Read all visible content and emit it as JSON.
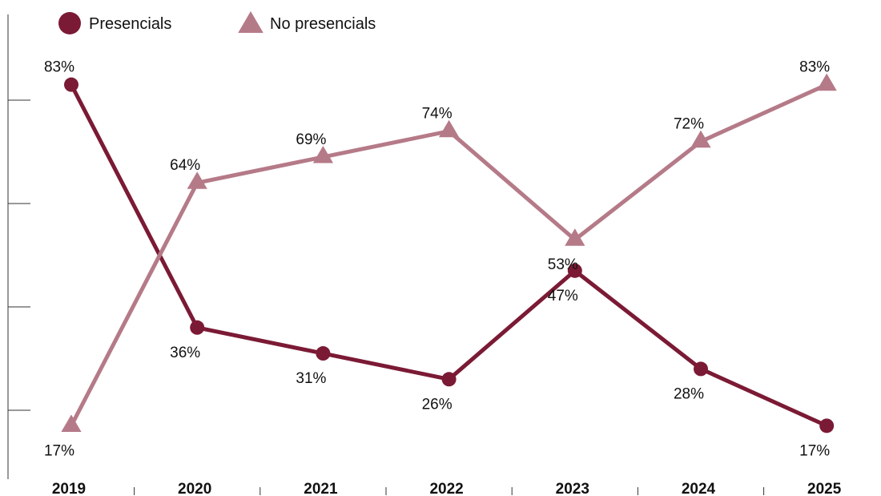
{
  "chart_data": {
    "type": "line",
    "x": [
      "2019",
      "2020",
      "2021",
      "2022",
      "2023",
      "2024",
      "2025"
    ],
    "ylim": [
      0,
      100
    ],
    "unit_suffix": "%",
    "legend_position": "top-left",
    "series": [
      {
        "name": "Presencials",
        "marker": "circle",
        "color": "#7b1a35",
        "values": [
          83,
          36,
          31,
          26,
          47,
          28,
          17
        ],
        "label_positions": [
          "above",
          "below",
          "below",
          "below",
          "below",
          "below",
          "below"
        ]
      },
      {
        "name": "No presencials",
        "marker": "triangle",
        "color": "#b57a88",
        "values": [
          17,
          64,
          69,
          74,
          53,
          72,
          83
        ],
        "label_positions": [
          "below",
          "above",
          "above",
          "above",
          "below",
          "above",
          "above"
        ]
      }
    ]
  }
}
